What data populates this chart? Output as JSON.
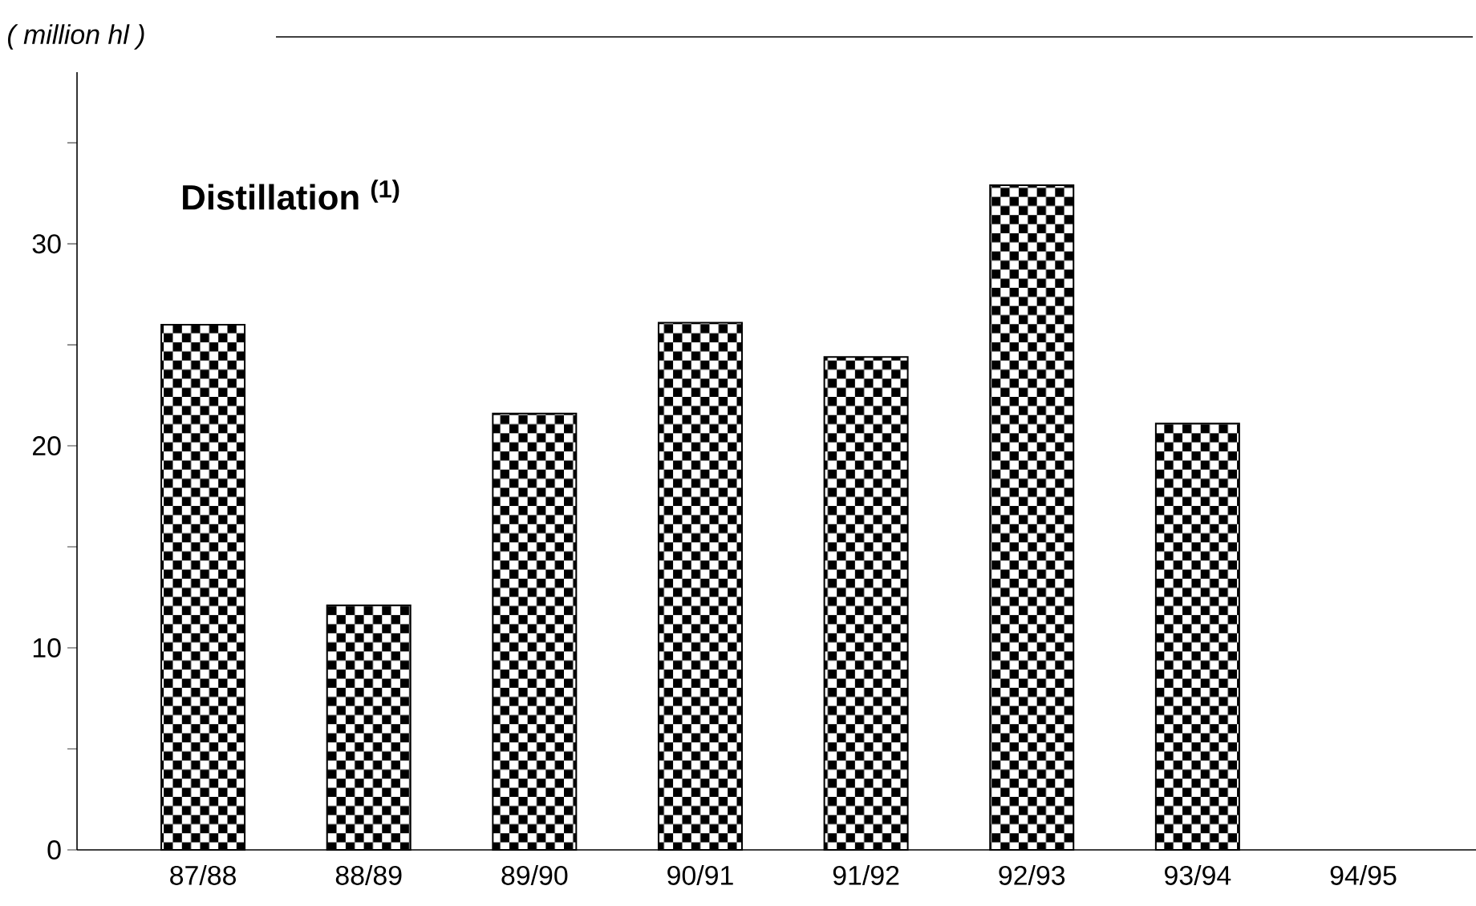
{
  "chart_data": {
    "type": "bar",
    "title": "Distillation $^{(1)}$",
    "ylabel": "( million hl )",
    "categories": [
      "87/88",
      "88/89",
      "89/90",
      "90/91",
      "91/92",
      "92/93",
      "93/94",
      "94/95"
    ],
    "values": [
      26.0,
      12.1,
      21.6,
      26.1,
      24.4,
      32.9,
      21.1,
      null
    ],
    "color": "#000000",
    "ylim": [
      0,
      38.5
    ],
    "yticks": [
      0,
      {
        "value": 5,
        "label": null
      },
      10,
      {
        "value": 15,
        "label": null
      },
      20,
      {
        "value": 25,
        "label": null
      },
      30,
      {
        "value": 35,
        "label": null
      }
    ],
    "grid": false
  }
}
